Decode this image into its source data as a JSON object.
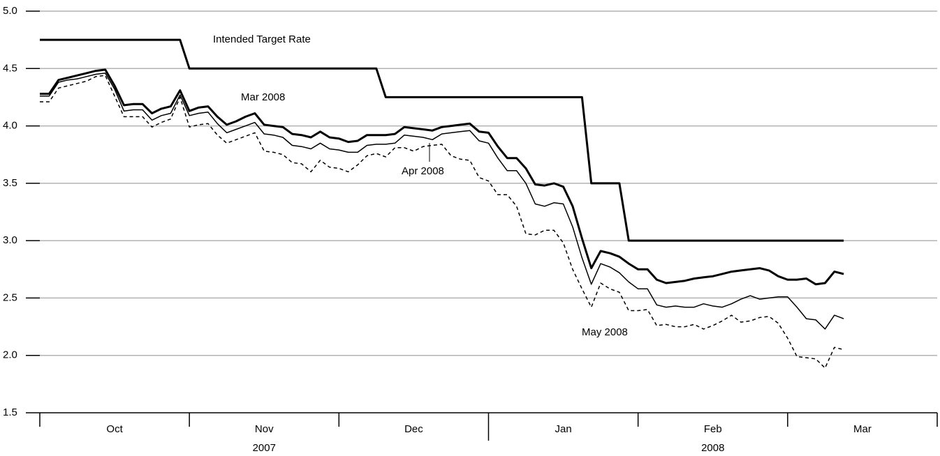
{
  "chart_data": {
    "type": "line",
    "categories": [
      null,
      null,
      null,
      null,
      null,
      null,
      null,
      null,
      null,
      null,
      null,
      null,
      null,
      null,
      null,
      null,
      null,
      null,
      null,
      null,
      null,
      null,
      null,
      null,
      null,
      null,
      null,
      null,
      null,
      null,
      null,
      null,
      null,
      null,
      null,
      null,
      null,
      null,
      null,
      null,
      null,
      null,
      null,
      null,
      null,
      null,
      null,
      null,
      null,
      null,
      null,
      null,
      null,
      null,
      null,
      null,
      null,
      null,
      null,
      null,
      null,
      null,
      null,
      null,
      null,
      null,
      null,
      null,
      null,
      null,
      null,
      null,
      null,
      null,
      null,
      null,
      null,
      null,
      null,
      null,
      null,
      null,
      null,
      null,
      null,
      null,
      null
    ],
    "months": [
      "Oct",
      "Nov",
      "Dec",
      "Jan",
      "Feb",
      "Mar"
    ],
    "years": [
      "2007",
      "2008"
    ],
    "ylim": [
      1.5,
      5.0
    ],
    "yticks": [
      {
        "value": 1.5,
        "label": "1.5"
      },
      {
        "value": 2,
        "label": "2.0"
      },
      {
        "value": 2.5,
        "label": "2.5"
      },
      {
        "value": 3,
        "label": "3.0"
      },
      {
        "value": 3.5,
        "label": "3.5"
      },
      {
        "value": 4,
        "label": "4.0"
      },
      {
        "value": 4.5,
        "label": "4.5"
      },
      {
        "value": 5,
        "label": "5.0"
      }
    ],
    "grid": true,
    "series": [
      {
        "name": "Intended Target Rate",
        "color": "#000000",
        "linewidth": 3,
        "linestyle": "solid",
        "values": [
          4.75,
          4.75,
          4.75,
          4.75,
          4.75,
          4.75,
          4.75,
          4.75,
          4.75,
          4.75,
          4.75,
          4.75,
          4.75,
          4.75,
          4.75,
          4.75,
          4.5,
          4.5,
          4.5,
          4.5,
          4.5,
          4.5,
          4.5,
          4.5,
          4.5,
          4.5,
          4.5,
          4.5,
          4.5,
          4.5,
          4.5,
          4.5,
          4.5,
          4.5,
          4.5,
          4.5,
          4.5,
          4.25,
          4.25,
          4.25,
          4.25,
          4.25,
          4.25,
          4.25,
          4.25,
          4.25,
          4.25,
          4.25,
          4.25,
          4.25,
          4.25,
          4.25,
          4.25,
          4.25,
          4.25,
          4.25,
          4.25,
          4.25,
          4.25,
          3.5,
          3.5,
          3.5,
          3.5,
          3,
          3,
          3,
          3,
          3,
          3,
          3,
          3,
          3,
          3,
          3,
          3,
          3,
          3,
          3,
          3,
          3,
          3,
          3,
          3,
          3,
          3,
          3,
          3
        ]
      },
      {
        "name": "Mar 2008",
        "color": "#000000",
        "linewidth": 3,
        "linestyle": "solid",
        "values": [
          4.28,
          4.28,
          4.4,
          4.42,
          4.44,
          4.46,
          4.48,
          4.49,
          4.35,
          4.18,
          4.19,
          4.19,
          4.11,
          4.15,
          4.17,
          4.31,
          4.13,
          4.16,
          4.17,
          4.08,
          4.01,
          4.04,
          4.08,
          4.11,
          4.01,
          4.0,
          3.99,
          3.93,
          3.92,
          3.9,
          3.95,
          3.9,
          3.89,
          3.86,
          3.87,
          3.92,
          3.92,
          3.92,
          3.93,
          3.99,
          3.98,
          3.97,
          3.96,
          3.99,
          4.0,
          4.01,
          4.02,
          3.95,
          3.94,
          3.82,
          3.72,
          3.72,
          3.63,
          3.49,
          3.48,
          3.5,
          3.47,
          3.3,
          3.02,
          2.76,
          2.91,
          2.89,
          2.86,
          2.8,
          2.75,
          2.75,
          2.66,
          2.63,
          2.64,
          2.65,
          2.67,
          2.68,
          2.69,
          2.71,
          2.73,
          2.74,
          2.75,
          2.76,
          2.74,
          2.69,
          2.66,
          2.66,
          2.67,
          2.62,
          2.63,
          2.73,
          2.71
        ]
      },
      {
        "name": "Apr 2008",
        "color": "#000000",
        "linewidth": 1.5,
        "linestyle": "solid",
        "values": [
          4.26,
          4.26,
          4.38,
          4.4,
          4.41,
          4.43,
          4.45,
          4.46,
          4.32,
          4.13,
          4.14,
          4.14,
          4.05,
          4.09,
          4.11,
          4.27,
          4.09,
          4.11,
          4.12,
          4.02,
          3.94,
          3.97,
          4.0,
          4.03,
          3.93,
          3.92,
          3.9,
          3.83,
          3.82,
          3.8,
          3.85,
          3.8,
          3.79,
          3.77,
          3.77,
          3.83,
          3.84,
          3.84,
          3.85,
          3.92,
          3.91,
          3.9,
          3.88,
          3.93,
          3.94,
          3.95,
          3.96,
          3.87,
          3.85,
          3.72,
          3.61,
          3.61,
          3.5,
          3.32,
          3.3,
          3.33,
          3.32,
          3.12,
          2.85,
          2.62,
          2.8,
          2.77,
          2.72,
          2.64,
          2.58,
          2.58,
          2.44,
          2.42,
          2.43,
          2.42,
          2.42,
          2.45,
          2.43,
          2.42,
          2.45,
          2.49,
          2.52,
          2.49,
          2.5,
          2.51,
          2.51,
          2.42,
          2.32,
          2.31,
          2.23,
          2.35,
          2.32
        ]
      },
      {
        "name": "May 2008",
        "color": "#000000",
        "linewidth": 1.5,
        "linestyle": "dashed",
        "values": [
          4.21,
          4.21,
          4.33,
          4.35,
          4.37,
          4.39,
          4.43,
          4.44,
          4.26,
          4.08,
          4.08,
          4.08,
          3.99,
          4.03,
          4.06,
          4.25,
          3.99,
          4.01,
          4.02,
          3.92,
          3.85,
          3.88,
          3.91,
          3.94,
          3.78,
          3.77,
          3.75,
          3.68,
          3.67,
          3.6,
          3.7,
          3.64,
          3.63,
          3.6,
          3.66,
          3.74,
          3.76,
          3.73,
          3.81,
          3.81,
          3.78,
          3.82,
          3.83,
          3.84,
          3.74,
          3.71,
          3.7,
          3.55,
          3.52,
          3.4,
          3.4,
          3.3,
          3.06,
          3.05,
          3.09,
          3.09,
          2.98,
          2.75,
          2.58,
          2.42,
          2.63,
          2.58,
          2.55,
          2.39,
          2.39,
          2.4,
          2.26,
          2.27,
          2.25,
          2.25,
          2.27,
          2.23,
          2.26,
          2.3,
          2.35,
          2.29,
          2.3,
          2.33,
          2.34,
          2.28,
          2.15,
          1.99,
          1.98,
          1.97,
          1.89,
          2.07,
          2.05
        ]
      }
    ]
  }
}
